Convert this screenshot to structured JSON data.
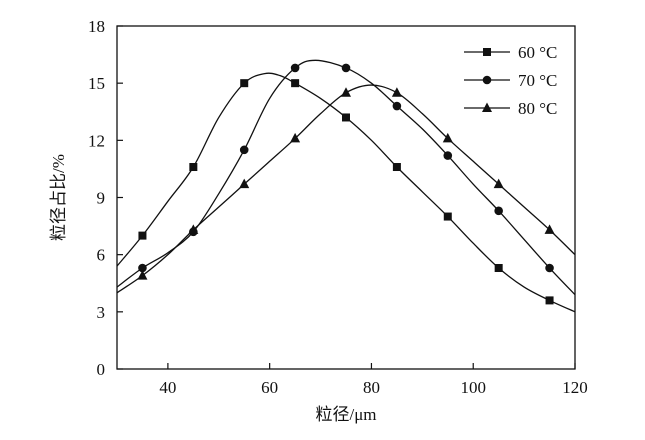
{
  "chart_data": {
    "type": "line",
    "xlabel": "粒径/μm",
    "ylabel": "粒径占比/%",
    "xlim": [
      30,
      120
    ],
    "ylim": [
      0,
      18
    ],
    "x_ticks": [
      "40",
      "60",
      "80",
      "100",
      "120"
    ],
    "y_ticks": [
      "0",
      "3",
      "6",
      "9",
      "12",
      "15",
      "18"
    ],
    "grid": false,
    "legend_position": "top-right",
    "series": [
      {
        "name": "60 °C",
        "marker": "square",
        "x": [
          35,
          45,
          55,
          65,
          75,
          85,
          95,
          105,
          115
        ],
        "y": [
          7.0,
          10.6,
          15.0,
          15.0,
          13.2,
          10.6,
          8.0,
          5.3,
          3.6
        ],
        "curve_x": [
          30,
          35,
          40,
          45,
          50,
          55,
          59,
          62,
          65,
          70,
          75,
          80,
          85,
          90,
          95,
          100,
          105,
          110,
          115,
          120
        ],
        "curve_y": [
          5.4,
          7.0,
          8.8,
          10.6,
          13.2,
          15.0,
          15.5,
          15.4,
          15.0,
          14.2,
          13.2,
          12.0,
          10.6,
          9.3,
          8.0,
          6.6,
          5.3,
          4.3,
          3.6,
          3.0
        ]
      },
      {
        "name": "70 °C",
        "marker": "circle",
        "x": [
          35,
          45,
          55,
          65,
          75,
          85,
          95,
          105,
          115
        ],
        "y": [
          5.3,
          7.2,
          11.5,
          15.8,
          15.8,
          13.8,
          11.2,
          8.3,
          5.3
        ],
        "curve_x": [
          30,
          35,
          40,
          45,
          50,
          55,
          60,
          65,
          69,
          75,
          80,
          85,
          90,
          95,
          100,
          105,
          110,
          115,
          120
        ],
        "curve_y": [
          4.3,
          5.3,
          6.1,
          7.2,
          9.2,
          11.5,
          14.2,
          15.8,
          16.2,
          15.8,
          15.0,
          13.8,
          12.6,
          11.2,
          9.7,
          8.3,
          6.8,
          5.3,
          3.9
        ]
      },
      {
        "name": "80 °C",
        "marker": "triangle",
        "x": [
          35,
          45,
          55,
          65,
          75,
          85,
          95,
          105,
          115
        ],
        "y": [
          4.9,
          7.3,
          9.7,
          12.1,
          14.5,
          14.5,
          12.1,
          9.7,
          7.3
        ],
        "curve_x": [
          30,
          35,
          40,
          45,
          50,
          55,
          60,
          65,
          70,
          75,
          80,
          85,
          90,
          95,
          100,
          105,
          110,
          115,
          120
        ],
        "curve_y": [
          4.0,
          4.9,
          6.0,
          7.3,
          8.5,
          9.7,
          10.9,
          12.1,
          13.4,
          14.5,
          14.9,
          14.5,
          13.4,
          12.1,
          10.9,
          9.7,
          8.5,
          7.3,
          6.0
        ]
      }
    ]
  }
}
